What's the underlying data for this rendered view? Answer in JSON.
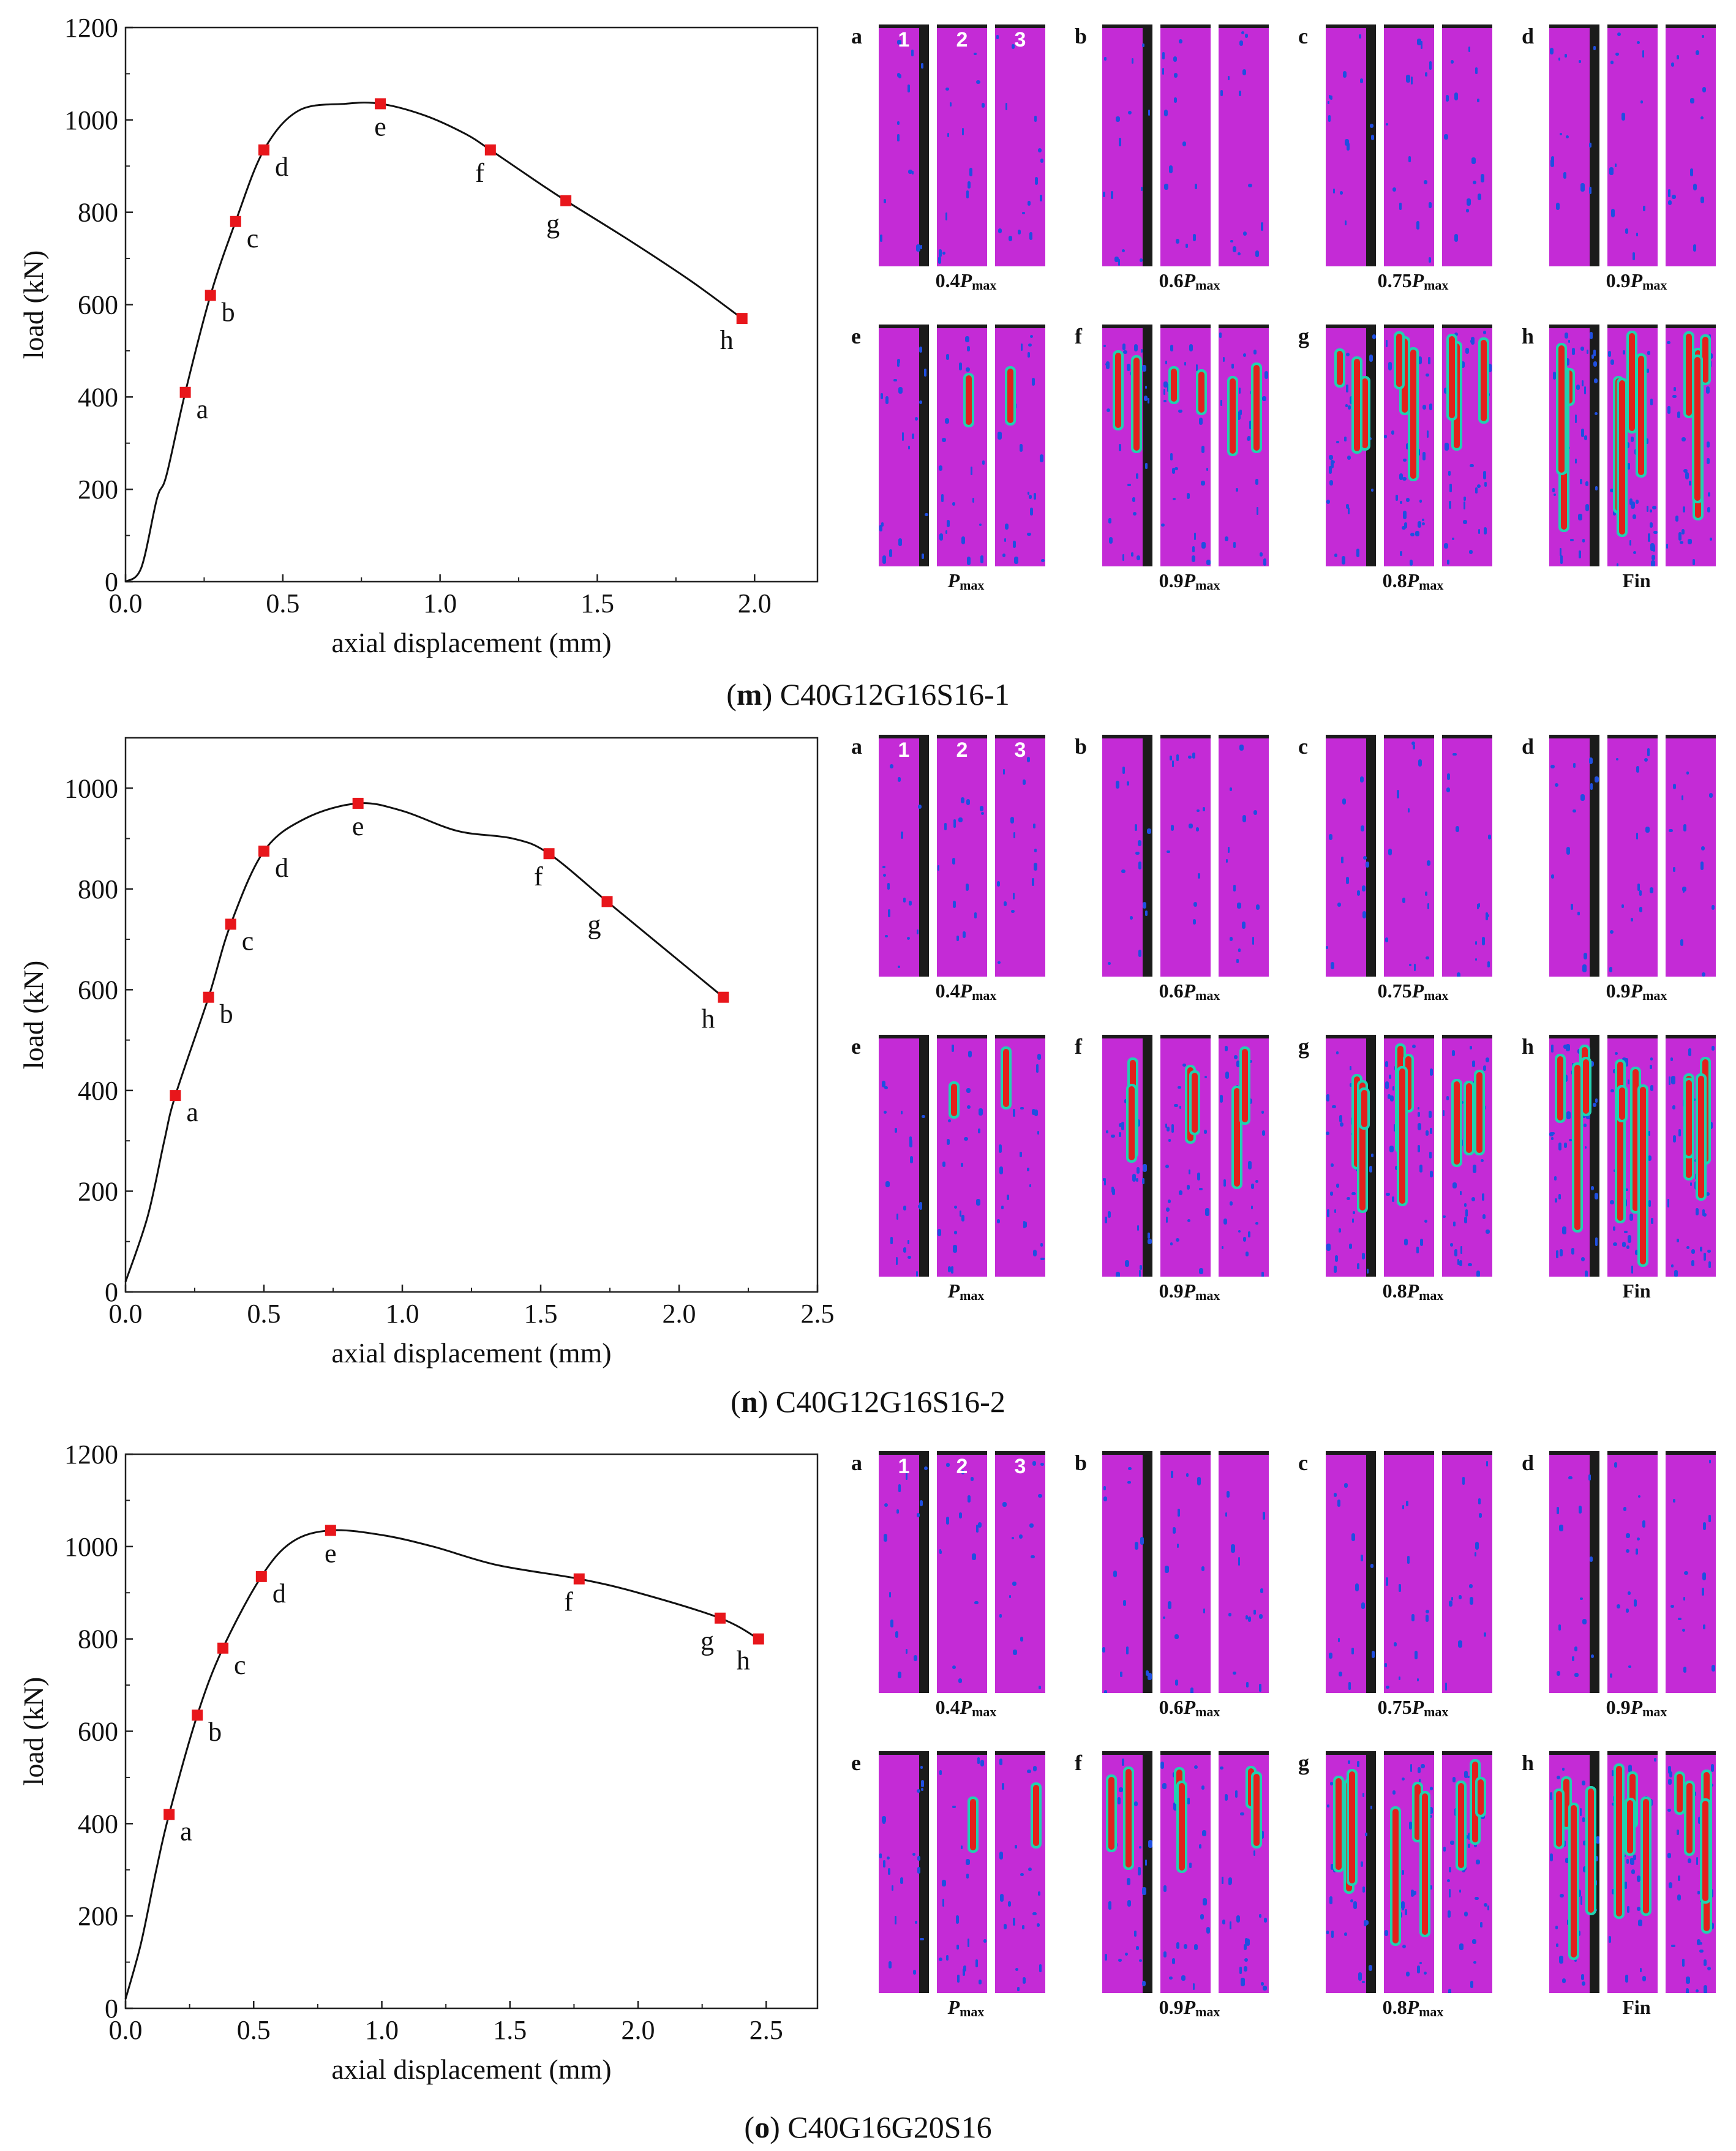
{
  "chart_data": [
    {
      "type": "line",
      "id": "m",
      "xlabel": "axial displacement (mm)",
      "ylabel": "load (kN)",
      "xlim": [
        0,
        2.2
      ],
      "ylim": [
        0,
        1200
      ],
      "xticks": [
        "0.0",
        "0.5",
        "1.0",
        "1.5",
        "2.0"
      ],
      "yticks": [
        "0",
        "200",
        "400",
        "600",
        "800",
        "1000",
        "1200"
      ],
      "curve": [
        [
          0,
          0
        ],
        [
          0.05,
          30
        ],
        [
          0.1,
          180
        ],
        [
          0.13,
          230
        ],
        [
          0.19,
          410
        ],
        [
          0.27,
          620
        ],
        [
          0.35,
          780
        ],
        [
          0.44,
          935
        ],
        [
          0.55,
          1020
        ],
        [
          0.7,
          1035
        ],
        [
          0.81,
          1035
        ],
        [
          0.95,
          1010
        ],
        [
          1.08,
          970
        ],
        [
          1.16,
          935
        ],
        [
          1.3,
          870
        ],
        [
          1.4,
          825
        ],
        [
          1.6,
          740
        ],
        [
          1.8,
          650
        ],
        [
          1.96,
          570
        ]
      ],
      "points": [
        {
          "label": "a",
          "x": 0.19,
          "y": 410
        },
        {
          "label": "b",
          "x": 0.27,
          "y": 620
        },
        {
          "label": "c",
          "x": 0.35,
          "y": 780
        },
        {
          "label": "d",
          "x": 0.44,
          "y": 935
        },
        {
          "label": "e",
          "x": 0.81,
          "y": 1035
        },
        {
          "label": "f",
          "x": 1.16,
          "y": 935
        },
        {
          "label": "g",
          "x": 1.4,
          "y": 825
        },
        {
          "label": "h",
          "x": 1.96,
          "y": 570
        }
      ],
      "caption_letter": "m",
      "caption_text": "C40G12G16S16-1"
    },
    {
      "type": "line",
      "id": "n",
      "xlabel": "axial displacement (mm)",
      "ylabel": "load (kN)",
      "xlim": [
        0,
        2.5
      ],
      "ylim": [
        0,
        1100
      ],
      "xticks": [
        "0.0",
        "0.5",
        "1.0",
        "1.5",
        "2.0",
        "2.5"
      ],
      "yticks": [
        "0",
        "200",
        "400",
        "600",
        "800",
        "1000"
      ],
      "curve": [
        [
          0,
          20
        ],
        [
          0.08,
          150
        ],
        [
          0.14,
          300
        ],
        [
          0.18,
          390
        ],
        [
          0.3,
          585
        ],
        [
          0.38,
          730
        ],
        [
          0.5,
          875
        ],
        [
          0.65,
          940
        ],
        [
          0.84,
          970
        ],
        [
          1.0,
          955
        ],
        [
          1.2,
          915
        ],
        [
          1.4,
          900
        ],
        [
          1.53,
          870
        ],
        [
          1.74,
          775
        ],
        [
          1.95,
          680
        ],
        [
          2.16,
          585
        ]
      ],
      "points": [
        {
          "label": "a",
          "x": 0.18,
          "y": 390
        },
        {
          "label": "b",
          "x": 0.3,
          "y": 585
        },
        {
          "label": "c",
          "x": 0.38,
          "y": 730
        },
        {
          "label": "d",
          "x": 0.5,
          "y": 875
        },
        {
          "label": "e",
          "x": 0.84,
          "y": 970
        },
        {
          "label": "f",
          "x": 1.53,
          "y": 870
        },
        {
          "label": "g",
          "x": 1.74,
          "y": 775
        },
        {
          "label": "h",
          "x": 2.16,
          "y": 585
        }
      ],
      "caption_letter": "n",
      "caption_text": "C40G12G16S16-2"
    },
    {
      "type": "line",
      "id": "o",
      "xlabel": "axial displacement (mm)",
      "ylabel": "load (kN)",
      "xlim": [
        0,
        2.7
      ],
      "ylim": [
        0,
        1200
      ],
      "xticks": [
        "0.0",
        "0.5",
        "1.0",
        "1.5",
        "2.0",
        "2.5"
      ],
      "yticks": [
        "0",
        "200",
        "400",
        "600",
        "800",
        "1000",
        "1200"
      ],
      "curve": [
        [
          0,
          20
        ],
        [
          0.06,
          140
        ],
        [
          0.12,
          300
        ],
        [
          0.17,
          420
        ],
        [
          0.28,
          635
        ],
        [
          0.38,
          780
        ],
        [
          0.53,
          935
        ],
        [
          0.65,
          1010
        ],
        [
          0.8,
          1035
        ],
        [
          1.0,
          1025
        ],
        [
          1.2,
          1000
        ],
        [
          1.45,
          960
        ],
        [
          1.77,
          930
        ],
        [
          2.0,
          900
        ],
        [
          2.32,
          845
        ],
        [
          2.47,
          800
        ]
      ],
      "points": [
        {
          "label": "a",
          "x": 0.17,
          "y": 420
        },
        {
          "label": "b",
          "x": 0.28,
          "y": 635
        },
        {
          "label": "c",
          "x": 0.38,
          "y": 780
        },
        {
          "label": "d",
          "x": 0.53,
          "y": 935
        },
        {
          "label": "e",
          "x": 0.8,
          "y": 1035
        },
        {
          "label": "f",
          "x": 1.77,
          "y": 930
        },
        {
          "label": "g",
          "x": 2.32,
          "y": 845
        },
        {
          "label": "h",
          "x": 2.47,
          "y": 800
        }
      ],
      "caption_letter": "o",
      "caption_text": "C40G16G20S16"
    }
  ],
  "dic_panels": {
    "letters": [
      "a",
      "b",
      "c",
      "d",
      "e",
      "f",
      "g",
      "h"
    ],
    "strip_numbers": [
      "1",
      "2",
      "3"
    ],
    "labels": [
      {
        "coef": "0.4",
        "sym": "P",
        "sub": "max"
      },
      {
        "coef": "0.6",
        "sym": "P",
        "sub": "max"
      },
      {
        "coef": "0.75",
        "sym": "P",
        "sub": "max"
      },
      {
        "coef": "0.9",
        "sym": "P",
        "sub": "max"
      },
      {
        "coef": "",
        "sym": "P",
        "sub": "max"
      },
      {
        "coef": "0.9",
        "sym": "P",
        "sub": "max"
      },
      {
        "coef": "0.8",
        "sym": "P",
        "sub": "max"
      },
      {
        "coef": "Fin",
        "sym": "",
        "sub": ""
      }
    ],
    "colors": {
      "field": "#c42bd6",
      "low": "#1f4fe0",
      "mid": "#22d0b0",
      "high": "#e3201b",
      "edge": "#1b1b1b"
    }
  }
}
